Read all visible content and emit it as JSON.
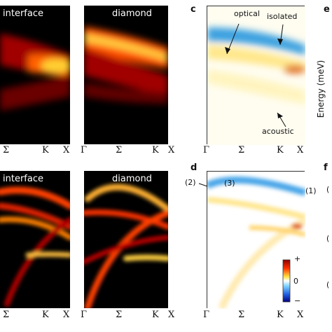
{
  "panels": {
    "a": {
      "title": "interface"
    },
    "b": {
      "title": "diamond"
    },
    "c": {
      "letter": "c",
      "annotations": {
        "optical": "optical",
        "isolated": "isolated",
        "acoustic": "acoustic"
      }
    },
    "d": {
      "letter": "d",
      "colorbar": {
        "max": "+",
        "mid": "0",
        "min": "−"
      },
      "labels": {
        "l1": "(1)",
        "l2": "(2)",
        "l3": "(3)"
      }
    },
    "e": {
      "letter": "e",
      "ylabel": "Energy (meV)"
    },
    "f": {
      "letter": "f",
      "labels": {
        "p1": "(",
        "p2": "(",
        "p3": "("
      }
    },
    "g": {
      "title": "interface"
    },
    "h": {
      "title": "diamond"
    }
  },
  "xticks": {
    "gamma": "Γ",
    "sigma": "Σ",
    "k": "K",
    "x": "X"
  },
  "colors": {
    "hot_black": "#000000",
    "hot_red": "#c00000",
    "hot_yellow": "#fff07a",
    "diff_blue": "#2f95d8",
    "diff_red": "#d04010"
  }
}
